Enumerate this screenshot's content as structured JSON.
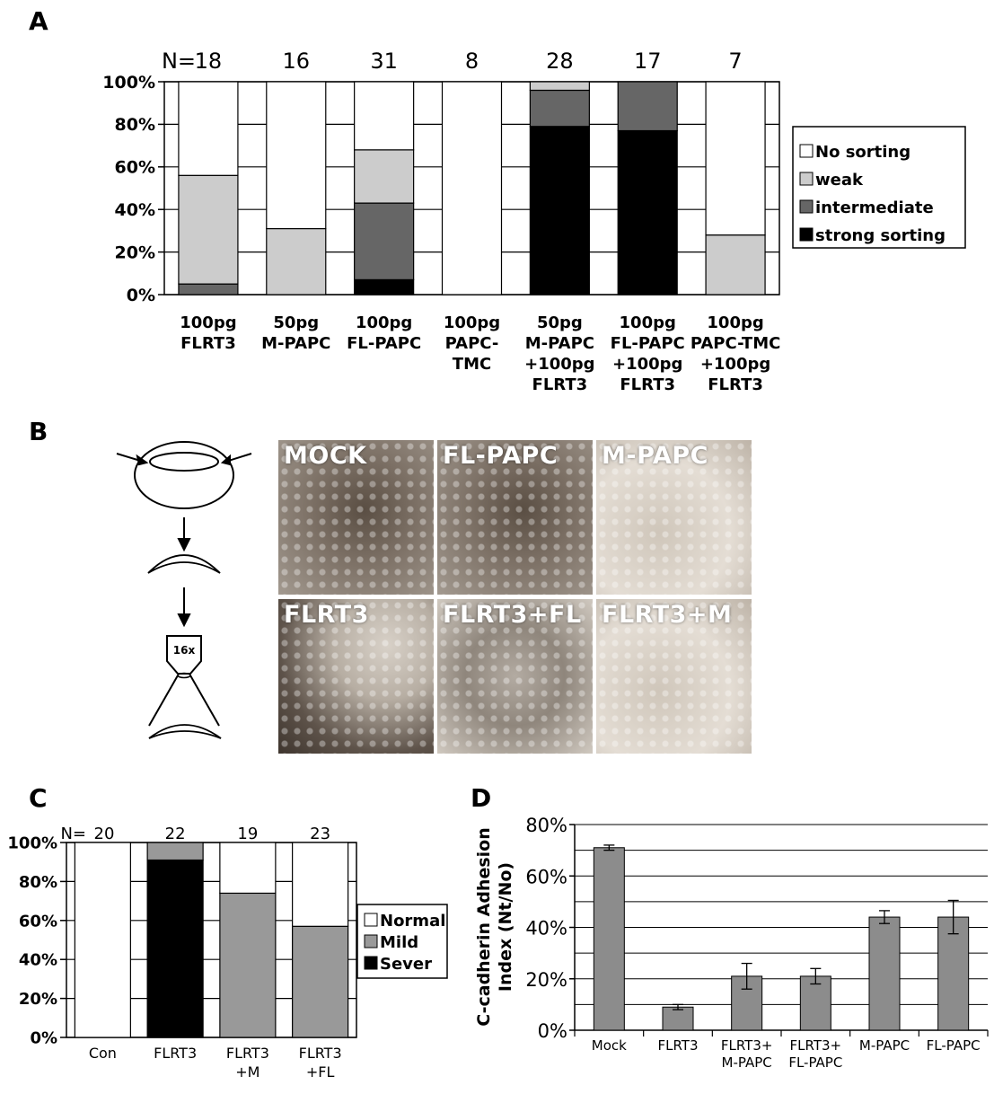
{
  "panels": {
    "A": "A",
    "B": "B",
    "C": "C",
    "D": "D"
  },
  "colors": {
    "no_sorting": "#ffffff",
    "weak": "#cccccc",
    "intermediate": "#666666",
    "strong": "#000000",
    "mild": "#999999",
    "sever": "#000000",
    "bar_d": "#8c8c8c",
    "photo_dark": "#4a3f35",
    "photo_light": "#d9d2c8"
  },
  "panelB": {
    "objective_label": "16x",
    "photos": [
      {
        "label": "MOCK",
        "tone": "dark"
      },
      {
        "label": "FL-PAPC",
        "tone": "dark"
      },
      {
        "label": "M-PAPC",
        "tone": "light"
      },
      {
        "label": "FLRT3",
        "tone": "mixed"
      },
      {
        "label": "FLRT3+FL",
        "tone": "medium"
      },
      {
        "label": "FLRT3+M",
        "tone": "light"
      }
    ]
  },
  "chart_data": [
    {
      "panel": "A",
      "type": "bar",
      "stacked": true,
      "n_prefix": "N=",
      "n_values": [
        "18",
        "16",
        "31",
        "8",
        "28",
        "17",
        "7"
      ],
      "categories": [
        [
          "100pg",
          "FLRT3"
        ],
        [
          "50pg",
          "M-PAPC"
        ],
        [
          "100pg",
          "FL-PAPC"
        ],
        [
          "100pg",
          "PAPC-",
          "TMC"
        ],
        [
          "50pg",
          "M-PAPC",
          "+100pg",
          "FLRT3"
        ],
        [
          "100pg",
          "FL-PAPC",
          "+100pg",
          "FLRT3"
        ],
        [
          "100pg",
          "PAPC-TMC",
          "+100pg",
          "FLRT3"
        ]
      ],
      "yticks": [
        "0%",
        "20%",
        "40%",
        "60%",
        "80%",
        "100%"
      ],
      "ylim": [
        0,
        100
      ],
      "grid": true,
      "legend_position": "right",
      "series": [
        {
          "name": "strong sorting",
          "color_key": "strong",
          "values": [
            0,
            0,
            7,
            0,
            79,
            77,
            0
          ]
        },
        {
          "name": "intermediate",
          "color_key": "intermediate",
          "values": [
            5,
            0,
            36,
            0,
            17,
            23,
            0
          ]
        },
        {
          "name": "weak",
          "color_key": "weak",
          "values": [
            51,
            31,
            25,
            0,
            4,
            0,
            28
          ]
        },
        {
          "name": "No sorting",
          "color_key": "no_sorting",
          "values": [
            44,
            69,
            32,
            100,
            0,
            0,
            72
          ]
        }
      ],
      "legend_order": [
        "No sorting",
        "weak",
        "intermediate",
        "strong sorting"
      ]
    },
    {
      "panel": "C",
      "type": "bar",
      "stacked": true,
      "n_prefix": "N=",
      "n_values": [
        "20",
        "22",
        "19",
        "23"
      ],
      "categories": [
        [
          "Con"
        ],
        [
          "FLRT3"
        ],
        [
          "FLRT3",
          "+M"
        ],
        [
          "FLRT3",
          "+FL"
        ]
      ],
      "yticks": [
        "0%",
        "20%",
        "40%",
        "60%",
        "80%",
        "100%"
      ],
      "ylim": [
        0,
        100
      ],
      "grid": true,
      "legend_position": "right",
      "series": [
        {
          "name": "Sever",
          "color_key": "sever",
          "values": [
            0,
            91,
            0,
            0
          ]
        },
        {
          "name": "Mild",
          "color_key": "mild",
          "values": [
            0,
            9,
            74,
            57
          ]
        },
        {
          "name": "Normal",
          "color_key": "no_sorting",
          "values": [
            100,
            0,
            26,
            43
          ]
        }
      ],
      "legend_order": [
        "Normal",
        "Mild",
        "Sever"
      ]
    },
    {
      "panel": "D",
      "type": "bar",
      "categories": [
        [
          "Mock"
        ],
        [
          "FLRT3"
        ],
        [
          "FLRT3+",
          "M-PAPC"
        ],
        [
          "FLRT3+",
          "FL-PAPC"
        ],
        [
          "M-PAPC"
        ],
        [
          "FL-PAPC"
        ]
      ],
      "values": [
        71,
        9,
        21,
        21,
        44,
        44
      ],
      "errors": [
        1,
        1,
        5,
        3,
        2.5,
        6.5
      ],
      "ylabel": [
        "C-cadherin Adhesion",
        "Index (Nt/No)"
      ],
      "yticks": [
        "0%",
        "20%",
        "40%",
        "60%",
        "80%"
      ],
      "ylim": [
        0,
        80
      ],
      "grid": true
    }
  ]
}
